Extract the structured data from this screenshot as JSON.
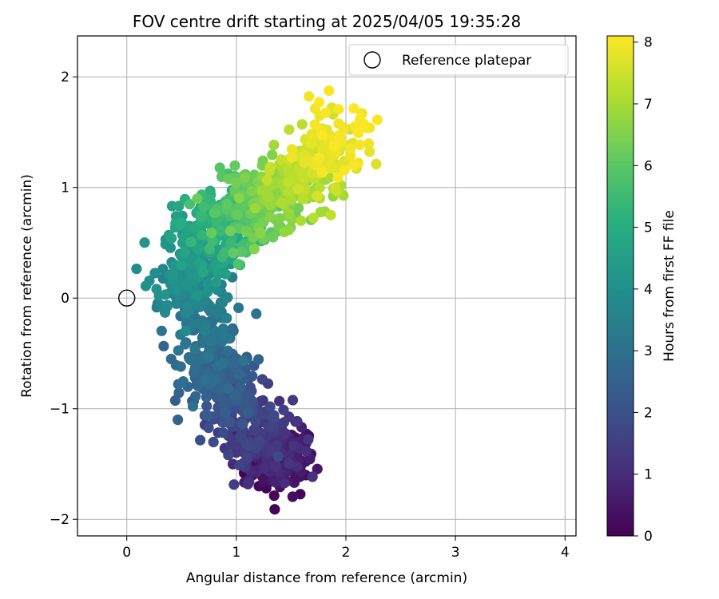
{
  "chart_data": {
    "type": "scatter",
    "title": "FOV centre drift starting at 2025/04/05 19:35:28",
    "xlabel": "Angular distance from reference (arcmin)",
    "ylabel": "Rotation from reference (arcmin)",
    "xlim": [
      -0.45,
      4.1
    ],
    "ylim": [
      -2.15,
      2.37
    ],
    "xticks": [
      0,
      1,
      2,
      3,
      4
    ],
    "yticks": [
      -2,
      -1,
      0,
      1,
      2
    ],
    "xtick_labels": [
      "0",
      "1",
      "2",
      "3",
      "4"
    ],
    "ytick_labels": [
      "−2",
      "−1",
      "0",
      "1",
      "2"
    ],
    "grid": true,
    "legend_position": "top-right",
    "colormap": "viridis",
    "colorbar": {
      "label": "Hours from first FF file",
      "range": [
        0,
        8.1
      ],
      "ticks": [
        0,
        1,
        2,
        3,
        4,
        5,
        6,
        7,
        8
      ],
      "tick_labels": [
        "0",
        "1",
        "2",
        "3",
        "4",
        "5",
        "6",
        "7",
        "8"
      ]
    },
    "reference": {
      "name": "Reference platepar",
      "x": 0,
      "y": 0
    },
    "trend": [
      {
        "h": 0.0,
        "x": 1.4,
        "y": -1.5
      },
      {
        "h": 0.5,
        "x": 1.4,
        "y": -1.45
      },
      {
        "h": 1.0,
        "x": 1.3,
        "y": -1.35
      },
      {
        "h": 1.5,
        "x": 1.15,
        "y": -1.15
      },
      {
        "h": 2.0,
        "x": 0.95,
        "y": -0.95
      },
      {
        "h": 2.5,
        "x": 0.85,
        "y": -0.75
      },
      {
        "h": 3.0,
        "x": 0.7,
        "y": -0.35
      },
      {
        "h": 3.5,
        "x": 0.6,
        "y": 0.0
      },
      {
        "h": 4.0,
        "x": 0.55,
        "y": 0.25
      },
      {
        "h": 4.5,
        "x": 0.65,
        "y": 0.5
      },
      {
        "h": 5.0,
        "x": 0.85,
        "y": 0.65
      },
      {
        "h": 5.5,
        "x": 1.0,
        "y": 0.75
      },
      {
        "h": 6.0,
        "x": 1.15,
        "y": 0.85
      },
      {
        "h": 6.5,
        "x": 1.35,
        "y": 0.9
      },
      {
        "h": 7.0,
        "x": 1.55,
        "y": 1.05
      },
      {
        "h": 7.5,
        "x": 1.75,
        "y": 1.2
      },
      {
        "h": 8.1,
        "x": 1.95,
        "y": 1.5
      }
    ],
    "n_points": 1400
  }
}
